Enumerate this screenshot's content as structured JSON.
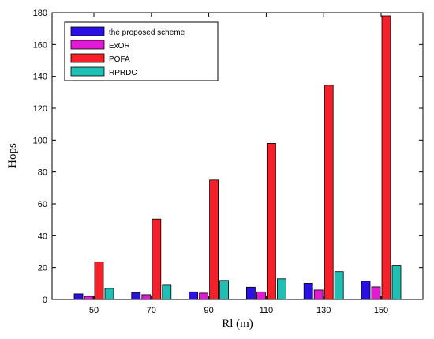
{
  "chart_data": {
    "type": "bar",
    "xlabel": "Rl (m)",
    "ylabel": "Hops",
    "categories": [
      "50",
      "70",
      "90",
      "110",
      "130",
      "150"
    ],
    "ylim": [
      0,
      180
    ],
    "yticks": [
      0,
      20,
      40,
      60,
      80,
      100,
      120,
      140,
      160,
      180
    ],
    "grid": false,
    "legend_position": "top-left",
    "series": [
      {
        "name": "the proposed scheme",
        "color": "#2b10e6",
        "values": [
          3.5,
          4.2,
          4.8,
          7.8,
          10.2,
          11.5
        ]
      },
      {
        "name": "ExOR",
        "color": "#e21ad6",
        "values": [
          2.0,
          3.0,
          4.0,
          4.8,
          6.0,
          8.0
        ]
      },
      {
        "name": "POFA",
        "color": "#f5202a",
        "values": [
          23.5,
          50.5,
          75.0,
          98.0,
          134.5,
          178.0
        ]
      },
      {
        "name": "RPRDC",
        "color": "#1fbfb4",
        "values": [
          7.0,
          9.0,
          12.0,
          13.0,
          17.5,
          21.5
        ]
      }
    ]
  }
}
